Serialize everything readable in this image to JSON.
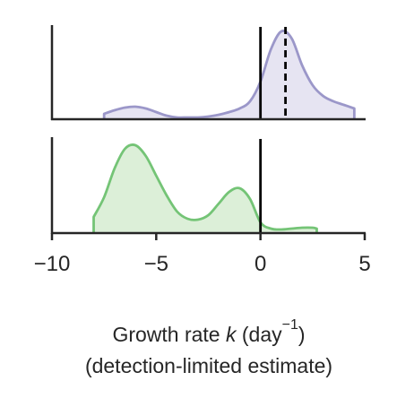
{
  "chart_data": [
    {
      "type": "area",
      "panel": "top",
      "series": [
        {
          "color": "#9b97c9",
          "fill": "#e6e4f2",
          "x": [
            -7.5,
            -7.0,
            -6.5,
            -6.0,
            -5.5,
            -5.0,
            -4.5,
            -4.0,
            -3.5,
            -3.0,
            -2.5,
            -2.0,
            -1.5,
            -1.0,
            -0.5,
            0.0,
            0.5,
            1.0,
            1.5,
            2.0,
            2.5,
            3.0,
            3.5,
            4.0,
            4.5
          ],
          "density": [
            0.06,
            0.1,
            0.13,
            0.14,
            0.12,
            0.08,
            0.04,
            0.02,
            0.02,
            0.02,
            0.03,
            0.05,
            0.08,
            0.12,
            0.2,
            0.42,
            0.78,
            0.98,
            0.9,
            0.6,
            0.38,
            0.26,
            0.2,
            0.16,
            0.12
          ]
        }
      ],
      "vlines": [
        {
          "x": 0,
          "style": "solid"
        },
        {
          "x": 1.2,
          "style": "dashed"
        }
      ],
      "xlim": [
        -10,
        5
      ]
    },
    {
      "type": "area",
      "panel": "bottom",
      "series": [
        {
          "color": "#74c476",
          "fill": "#dcefd8",
          "x": [
            -8.0,
            -7.5,
            -7.0,
            -6.5,
            -6.0,
            -5.5,
            -5.0,
            -4.5,
            -4.0,
            -3.5,
            -3.0,
            -2.5,
            -2.0,
            -1.5,
            -1.0,
            -0.5,
            0.0,
            0.5,
            1.0,
            1.5,
            2.0,
            2.5,
            2.7
          ],
          "density": [
            0.18,
            0.4,
            0.72,
            0.94,
            0.98,
            0.86,
            0.64,
            0.42,
            0.24,
            0.16,
            0.15,
            0.2,
            0.33,
            0.46,
            0.5,
            0.38,
            0.12,
            0.05,
            0.04,
            0.05,
            0.06,
            0.06,
            0.05
          ]
        }
      ],
      "vlines": [
        {
          "x": 0,
          "style": "solid"
        }
      ],
      "xlim": [
        -10,
        5
      ]
    }
  ],
  "axis": {
    "xticks": [
      -10,
      -5,
      0,
      5
    ],
    "xtick_labels": [
      "−10",
      "−5",
      "0",
      "5"
    ],
    "xlabel_part1": "Growth rate ",
    "xlabel_var": "k",
    "xlabel_part2": " (day",
    "xlabel_sup": "−1",
    "xlabel_part3": ")",
    "xlabel_line2": "(detection-limited estimate)"
  }
}
